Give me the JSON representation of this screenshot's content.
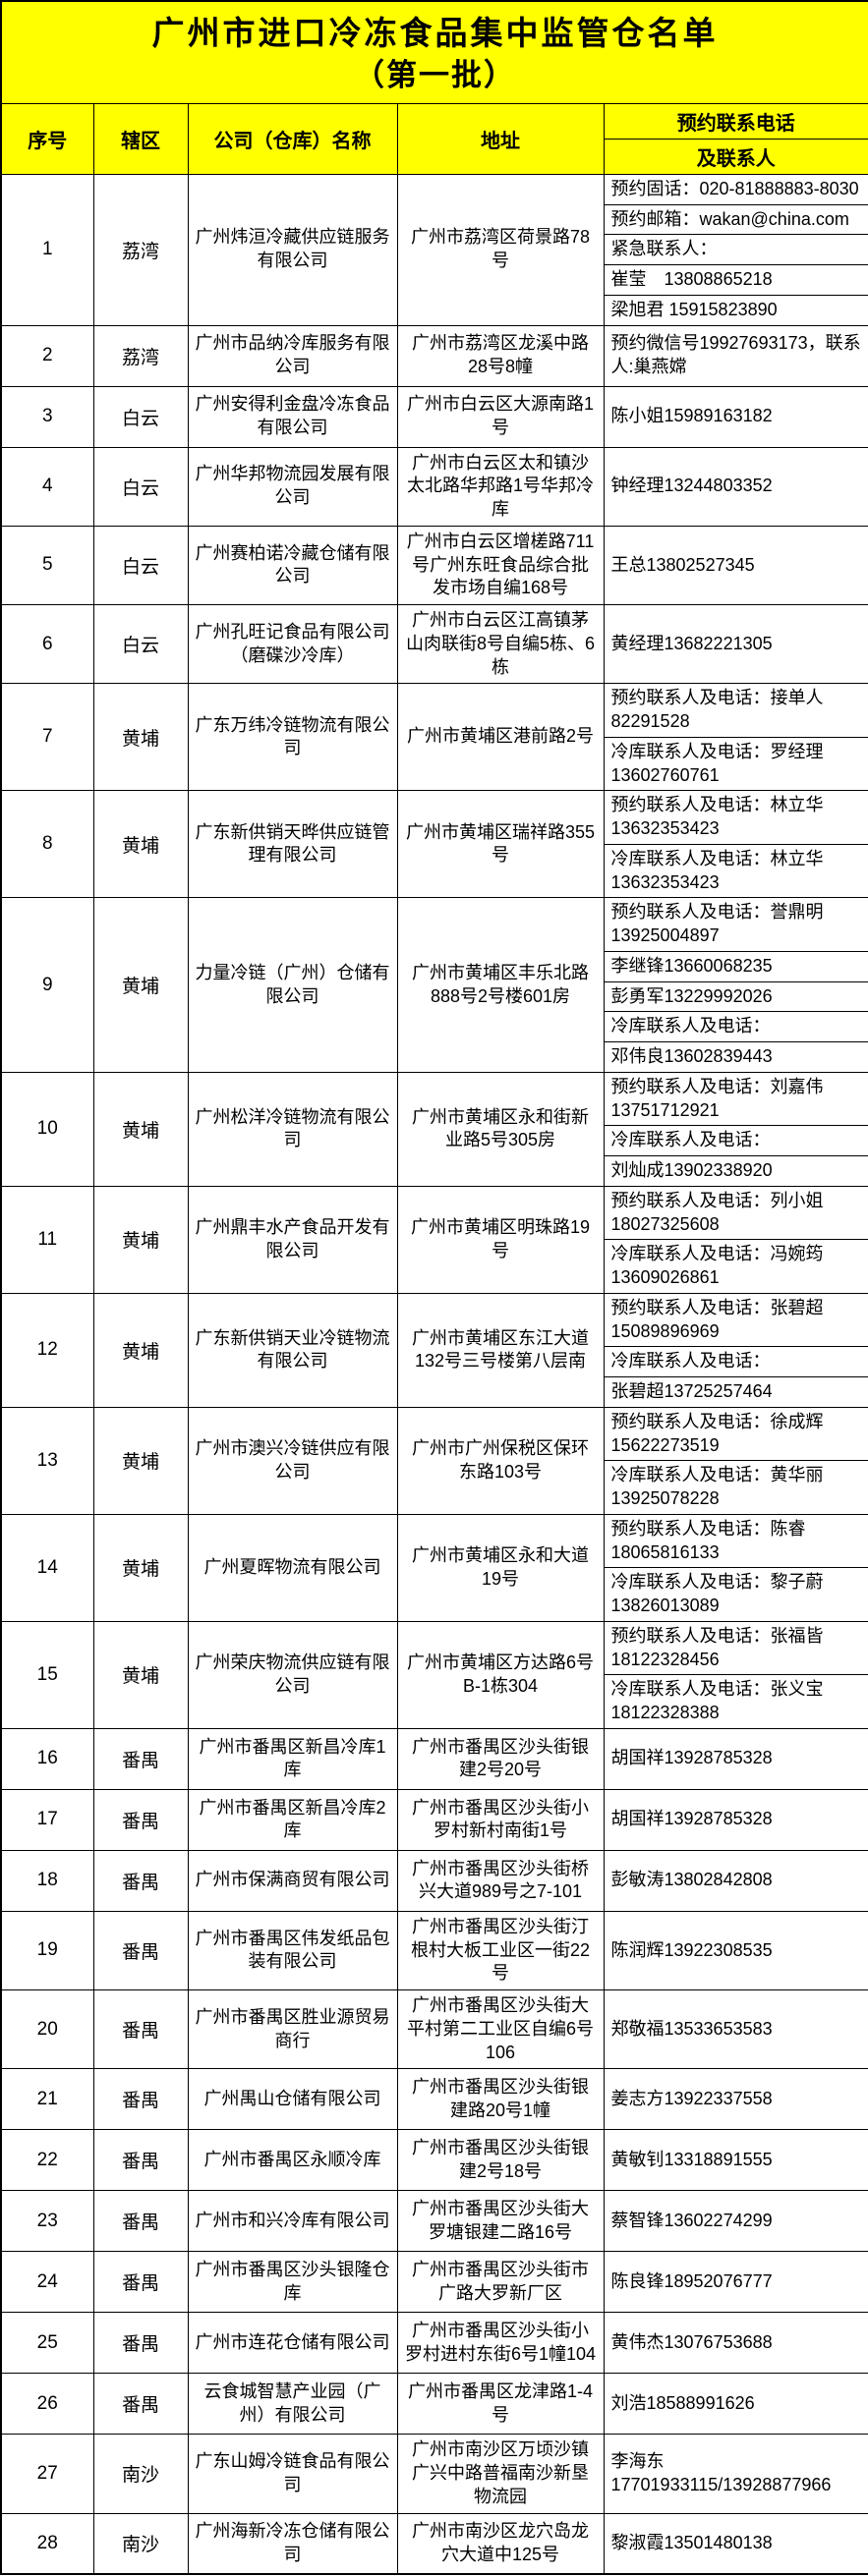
{
  "title": {
    "line1": "广州市进口冷冻食品集中监管仓名单",
    "line2": "（第一批）"
  },
  "header": {
    "seq": "序号",
    "district": "辖区",
    "company": "公司（仓库）名称",
    "address": "地址",
    "contact_top": "预约联系电话",
    "contact_bottom": "及联系人"
  },
  "colors": {
    "header_bg": "#ffff00",
    "body_bg": "#ffffff",
    "border": "#000000",
    "text": "#000000"
  },
  "rows": [
    {
      "seq": "1",
      "district": "荔湾",
      "company": "广州炜洹冷藏供应链服务有限公司",
      "address": "广州市荔湾区荷景路78号",
      "contacts": [
        "预约固话：020-81888883-8030",
        "预约邮箱：wakan@china.com",
        "紧急联系人：",
        "崔莹　13808865218",
        "梁旭君 15915823890"
      ]
    },
    {
      "seq": "2",
      "district": "荔湾",
      "company": "广州市品纳冷库服务有限公司",
      "address": "广州市荔湾区龙溪中路28号8幢",
      "contacts": [
        "预约微信号19927693173，联系人:巢燕嫦"
      ]
    },
    {
      "seq": "3",
      "district": "白云",
      "company": "广州安得利金盘冷冻食品有限公司",
      "address": "广州市白云区大源南路1号",
      "contacts": [
        "陈小姐15989163182"
      ]
    },
    {
      "seq": "4",
      "district": "白云",
      "company": "广州华邦物流园发展有限公司",
      "address": "广州市白云区太和镇沙太北路华邦路1号华邦冷库",
      "contacts": [
        "钟经理13244803352"
      ]
    },
    {
      "seq": "5",
      "district": "白云",
      "company": "广州赛柏诺冷藏仓储有限公司",
      "address": "广州市白云区增槎路711号广州东旺食品综合批发市场自编168号",
      "contacts": [
        "王总13802527345"
      ]
    },
    {
      "seq": "6",
      "district": "白云",
      "company": "广州孔旺记食品有限公司（磨碟沙冷库）",
      "address": "广州市白云区江高镇茅山肉联街8号自编5栋、6栋",
      "contacts": [
        "黄经理13682221305"
      ]
    },
    {
      "seq": "7",
      "district": "黄埔",
      "company": "广东万纬冷链物流有限公司",
      "address": "广州市黄埔区港前路2号",
      "contacts": [
        "预约联系人及电话：接单人82291528",
        "冷库联系人及电话：罗经理13602760761"
      ]
    },
    {
      "seq": "8",
      "district": "黄埔",
      "company": "广东新供销天晔供应链管理有限公司",
      "address": "广州市黄埔区瑞祥路355号",
      "contacts": [
        "预约联系人及电话：林立华13632353423",
        "冷库联系人及电话：林立华13632353423"
      ]
    },
    {
      "seq": "9",
      "district": "黄埔",
      "company": "力量冷链（广州）仓储有限公司",
      "address": "广州市黄埔区丰乐北路888号2号楼601房",
      "contacts": [
        "预约联系人及电话：誉鼎明13925004897",
        "李继锋13660068235",
        "彭勇军13229992026",
        "冷库联系人及电话：",
        "邓伟良13602839443"
      ]
    },
    {
      "seq": "10",
      "district": "黄埔",
      "company": "广州松洋冷链物流有限公司",
      "address": "广州市黄埔区永和街新业路5号305房",
      "contacts": [
        "预约联系人及电话：刘嘉伟13751712921",
        "冷库联系人及电话：",
        "刘灿成13902338920"
      ]
    },
    {
      "seq": "11",
      "district": "黄埔",
      "company": "广州鼎丰水产食品开发有限公司",
      "address": "广州市黄埔区明珠路19号",
      "contacts": [
        "预约联系人及电话：列小姐18027325608",
        "冷库联系人及电话：冯婉筠13609026861"
      ]
    },
    {
      "seq": "12",
      "district": "黄埔",
      "company": "广东新供销天业冷链物流有限公司",
      "address": "广州市黄埔区东江大道132号三号楼第八层南",
      "contacts": [
        "预约联系人及电话：张碧超15089896969",
        "冷库联系人及电话：",
        "张碧超13725257464"
      ]
    },
    {
      "seq": "13",
      "district": "黄埔",
      "company": "广州市澳兴冷链供应有限公司",
      "address": "广州市广州保税区保环东路103号",
      "contacts": [
        "预约联系人及电话：徐成辉15622273519",
        "冷库联系人及电话：黄华丽13925078228"
      ]
    },
    {
      "seq": "14",
      "district": "黄埔",
      "company": "广州夏晖物流有限公司",
      "address": "广州市黄埔区永和大道19号",
      "contacts": [
        "预约联系人及电话：陈睿18065816133",
        "冷库联系人及电话：黎子蔚13826013089"
      ]
    },
    {
      "seq": "15",
      "district": "黄埔",
      "company": "广州荣庆物流供应链有限公司",
      "address": "广州市黄埔区方达路6号B-1栋304",
      "contacts": [
        "预约联系人及电话：张福皆18122328456",
        "冷库联系人及电话：张义宝18122328388"
      ]
    },
    {
      "seq": "16",
      "district": "番禺",
      "company": "广州市番禺区新昌冷库1库",
      "address": "广州市番禺区沙头街银建2号20号",
      "contacts": [
        "胡国祥13928785328"
      ]
    },
    {
      "seq": "17",
      "district": "番禺",
      "company": "广州市番禺区新昌冷库2库",
      "address": "广州市番禺区沙头街小罗村新村南街1号",
      "contacts": [
        "胡国祥13928785328"
      ]
    },
    {
      "seq": "18",
      "district": "番禺",
      "company": "广州市保满商贸有限公司",
      "address": "广州市番禺区沙头街桥兴大道989号之7-101",
      "contacts": [
        "彭敏涛13802842808"
      ]
    },
    {
      "seq": "19",
      "district": "番禺",
      "company": "广州市番禺区伟发纸品包装有限公司",
      "address": "广州市番禺区沙头街汀根村大板工业区一街22号",
      "contacts": [
        "陈润辉13922308535"
      ]
    },
    {
      "seq": "20",
      "district": "番禺",
      "company": "广州市番禺区胜业源贸易商行",
      "address": "广州市番禺区沙头街大平村第二工业区自编6号106",
      "contacts": [
        "郑敬福13533653583"
      ]
    },
    {
      "seq": "21",
      "district": "番禺",
      "company": "广州禺山仓储有限公司",
      "address": "广州市番禺区沙头街银建路20号1幢",
      "contacts": [
        "姜志方13922337558"
      ]
    },
    {
      "seq": "22",
      "district": "番禺",
      "company": "广州市番禺区永顺冷库",
      "address": "广州市番禺区沙头街银建2号18号",
      "contacts": [
        "黄敏钊13318891555"
      ]
    },
    {
      "seq": "23",
      "district": "番禺",
      "company": "广州市和兴冷库有限公司",
      "address": "广州市番禺区沙头街大罗塘银建二路16号",
      "contacts": [
        "蔡智锋13602274299"
      ]
    },
    {
      "seq": "24",
      "district": "番禺",
      "company": "广州市番禺区沙头银隆仓库",
      "address": "广州市番禺区沙头街市广路大罗新厂区",
      "contacts": [
        "陈良锋18952076777"
      ]
    },
    {
      "seq": "25",
      "district": "番禺",
      "company": "广州市连花仓储有限公司",
      "address": "广州市番禺区沙头街小罗村进村东街6号1幢104",
      "contacts": [
        "黄伟杰13076753688"
      ]
    },
    {
      "seq": "26",
      "district": "番禺",
      "company": "云食城智慧产业园（广州）有限公司",
      "address": "广州市番禺区龙津路1-4号",
      "contacts": [
        "刘浩18588991626"
      ]
    },
    {
      "seq": "27",
      "district": "南沙",
      "company": "广东山姆冷链食品有限公司",
      "address": "广州市南沙区万顷沙镇广兴中路普福南沙新垦物流园",
      "contacts": [
        "李海东 17701933115/13928877966"
      ]
    },
    {
      "seq": "28",
      "district": "南沙",
      "company": "广州海新冷冻仓储有限公司",
      "address": "广州市南沙区龙穴岛龙穴大道中125号",
      "contacts": [
        "黎淑霞13501480138"
      ]
    }
  ]
}
